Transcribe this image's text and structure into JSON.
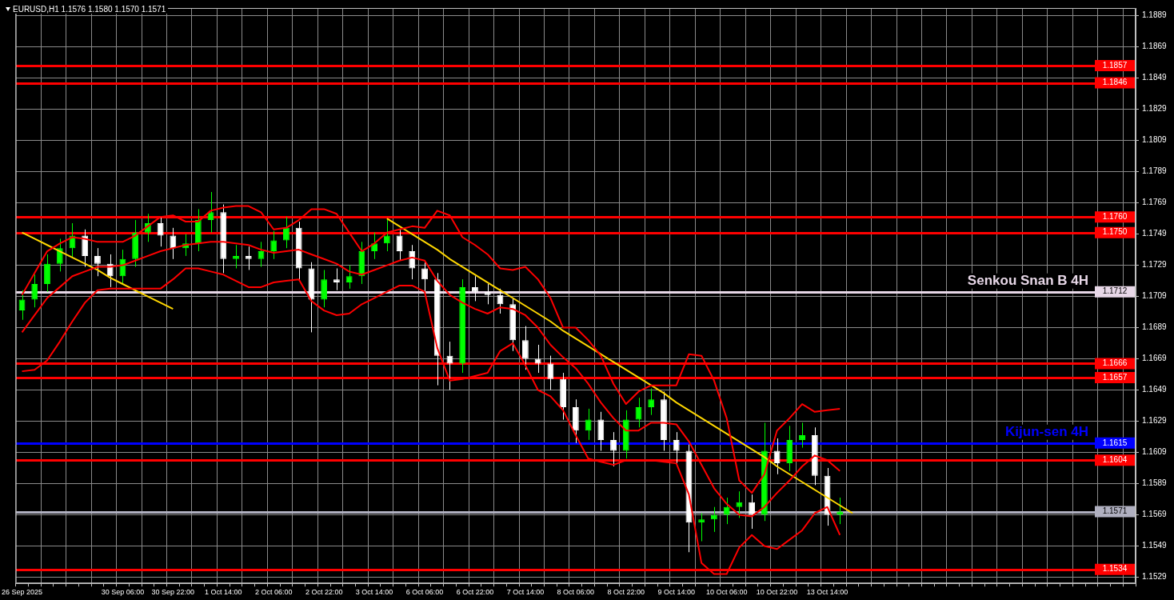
{
  "chart_data": {
    "type": "candlestick",
    "title": "EURUSD,H1  1.1576 1.1580 1.1570 1.1571",
    "colors": [
      "#00ff00",
      "#00ff00",
      "#00ff00",
      "#00ff00",
      "#00ff00",
      "#ffffff",
      "#ffffff",
      "#ffffff",
      "#00ff00",
      "#00ff00",
      "#00ff00",
      "#ffffff",
      "#ffffff",
      "#00ff00",
      "#00ff00",
      "#00ff00",
      "#ffffff",
      "#00ff00",
      "#ffffff",
      "#00ff00",
      "#00ff00",
      "#00ff00",
      "#ffffff",
      "#ffffff",
      "#00ff00",
      "#ffffff",
      "#00ff00",
      "#00ff00",
      "#00ff00",
      "#00ff00",
      "#ffffff",
      "#ffffff",
      "#ffffff",
      "#ffffff",
      "#ffffff",
      "#00ff00",
      "#ffffff",
      "#ffffff",
      "#ffffff",
      "#ffffff",
      "#ffffff",
      "#ffffff",
      "#ffffff",
      "#ffffff",
      "#ffffff",
      "#00ff00",
      "#ffffff",
      "#ffffff",
      "#00ff00",
      "#00ff00",
      "#00ff00",
      "#ffffff",
      "#ffffff",
      "#ffffff",
      "#00ff00",
      "#00ff00",
      "#00ff00",
      "#00ff00",
      "#ffffff",
      "#00ff00",
      "#ffffff",
      "#00ff00",
      "#00ff00",
      "#ffffff",
      "#ffffff",
      "#00ff00",
      null,
      null,
      null,
      null,
      null,
      null,
      null,
      null,
      null,
      null,
      null,
      null,
      null,
      null,
      null,
      null,
      null,
      null,
      null,
      null,
      null,
      null,
      null
    ],
    "categories": [
      "26 Sep 2025",
      null,
      null,
      null,
      null,
      null,
      null,
      null,
      "30 Sep 06:00",
      null,
      null,
      null,
      "30 Sep 22:00",
      null,
      null,
      null,
      "1 Oct 14:00",
      null,
      null,
      null,
      "2 Oct 06:00",
      null,
      null,
      null,
      "2 Oct 22:00",
      null,
      null,
      null,
      "3 Oct 14:00",
      null,
      null,
      null,
      "6 Oct 06:00",
      null,
      null,
      null,
      "6 Oct 22:00",
      null,
      null,
      null,
      "7 Oct 14:00",
      null,
      null,
      null,
      "8 Oct 06:00",
      null,
      null,
      null,
      "8 Oct 22:00",
      null,
      null,
      null,
      "9 Oct 14:00",
      null,
      null,
      null,
      "10 Oct 06:00",
      null,
      null,
      null,
      "10 Oct 22:00",
      null,
      null,
      null,
      "13 Oct 14:00",
      null,
      null,
      null,
      null,
      null,
      null,
      null,
      null,
      null,
      null,
      null,
      null,
      null,
      null,
      null,
      null,
      null,
      null,
      null,
      null,
      null,
      null,
      null,
      null
    ],
    "ohlc": [
      [
        1.17,
        1.1713,
        1.1694,
        1.1707
      ],
      [
        1.1707,
        1.1723,
        1.1702,
        1.1717
      ],
      [
        1.1717,
        1.1736,
        1.1712,
        1.173
      ],
      [
        1.173,
        1.1746,
        1.1725,
        1.174
      ],
      [
        1.174,
        1.1756,
        1.1734,
        1.1748
      ],
      [
        1.1748,
        1.1752,
        1.1728,
        1.1735
      ],
      [
        1.1735,
        1.174,
        1.1722,
        1.173
      ],
      [
        1.173,
        1.1736,
        1.1715,
        1.1722
      ],
      [
        1.1722,
        1.1739,
        1.1717,
        1.1733
      ],
      [
        1.1733,
        1.1758,
        1.1728,
        1.175
      ],
      [
        1.175,
        1.1762,
        1.1744,
        1.1756
      ],
      [
        1.1756,
        1.176,
        1.1741,
        1.1748
      ],
      [
        1.1748,
        1.1753,
        1.1733,
        1.174
      ],
      [
        1.174,
        1.1749,
        1.1735,
        1.1743
      ],
      [
        1.1743,
        1.1765,
        1.1738,
        1.1758
      ],
      [
        1.1758,
        1.1776,
        1.175,
        1.1763
      ],
      [
        1.1763,
        1.1768,
        1.1724,
        1.1733
      ],
      [
        1.1733,
        1.1742,
        1.1727,
        1.1735
      ],
      [
        1.1735,
        1.1741,
        1.1726,
        1.1733
      ],
      [
        1.1733,
        1.1744,
        1.1728,
        1.1738
      ],
      [
        1.1738,
        1.1751,
        1.1733,
        1.1745
      ],
      [
        1.1745,
        1.176,
        1.174,
        1.1753
      ],
      [
        1.1753,
        1.1757,
        1.1719,
        1.1727
      ],
      [
        1.1727,
        1.1731,
        1.1686,
        1.1707
      ],
      [
        1.1707,
        1.1726,
        1.1702,
        1.172
      ],
      [
        1.172,
        1.1727,
        1.1713,
        1.1718
      ],
      [
        1.1718,
        1.1729,
        1.1714,
        1.1722
      ],
      [
        1.1722,
        1.1744,
        1.1717,
        1.1738
      ],
      [
        1.1738,
        1.175,
        1.1733,
        1.1743
      ],
      [
        1.1743,
        1.1759,
        1.1738,
        1.1748
      ],
      [
        1.1748,
        1.1752,
        1.1732,
        1.1738
      ],
      [
        1.1738,
        1.1742,
        1.172,
        1.1727
      ],
      [
        1.1727,
        1.1731,
        1.1712,
        1.172
      ],
      [
        1.172,
        1.1724,
        1.1652,
        1.1671
      ],
      [
        1.1671,
        1.168,
        1.1649,
        1.1666
      ],
      [
        1.1666,
        1.172,
        1.166,
        1.1715
      ],
      [
        1.1715,
        1.1722,
        1.1706,
        1.1712
      ],
      [
        1.1712,
        1.1717,
        1.1704,
        1.171
      ],
      [
        1.171,
        1.1714,
        1.1698,
        1.1704
      ],
      [
        1.1704,
        1.1708,
        1.1674,
        1.1681
      ],
      [
        1.1681,
        1.169,
        1.1662,
        1.1669
      ],
      [
        1.1669,
        1.1678,
        1.166,
        1.1666
      ],
      [
        1.1666,
        1.1671,
        1.1649,
        1.1656
      ],
      [
        1.1656,
        1.166,
        1.163,
        1.1638
      ],
      [
        1.1638,
        1.1643,
        1.1615,
        1.1623
      ],
      [
        1.1623,
        1.1637,
        1.1617,
        1.163
      ],
      [
        1.163,
        1.1635,
        1.161,
        1.1617
      ],
      [
        1.1617,
        1.1622,
        1.16,
        1.161
      ],
      [
        1.161,
        1.1636,
        1.1605,
        1.163
      ],
      [
        1.163,
        1.1644,
        1.1625,
        1.1638
      ],
      [
        1.1638,
        1.165,
        1.1633,
        1.1643
      ],
      [
        1.1643,
        1.1648,
        1.161,
        1.1617
      ],
      [
        1.1617,
        1.1622,
        1.1602,
        1.161
      ],
      [
        1.161,
        1.1614,
        1.1545,
        1.1564
      ],
      [
        1.1564,
        1.157,
        1.1552,
        1.1566
      ],
      [
        1.1566,
        1.1574,
        1.1558,
        1.1569
      ],
      [
        1.1569,
        1.158,
        1.1563,
        1.1574
      ],
      [
        1.1574,
        1.1584,
        1.1567,
        1.1577
      ],
      [
        1.1577,
        1.1582,
        1.156,
        1.1569
      ],
      [
        1.1569,
        1.1628,
        1.1565,
        1.161
      ],
      [
        1.161,
        1.1618,
        1.1595,
        1.1602
      ],
      [
        1.1602,
        1.1626,
        1.1597,
        1.1617
      ],
      [
        1.1617,
        1.1628,
        1.1612,
        1.162
      ],
      [
        1.162,
        1.1625,
        1.1588,
        1.1594
      ],
      [
        1.1594,
        1.1599,
        1.1562,
        1.1569
      ],
      [
        1.1569,
        1.158,
        1.1563,
        1.1571
      ],
      null,
      null,
      null,
      null,
      null,
      null,
      null,
      null,
      null,
      null,
      null,
      null,
      null,
      null,
      null,
      null,
      null,
      null,
      null,
      null,
      null,
      null,
      null
    ],
    "series": [
      {
        "type": "line",
        "color": "#ff0000",
        "values": [
          1.171,
          1.1724,
          1.1738,
          1.1743,
          1.1747,
          1.1746,
          1.1744,
          1.1744,
          1.1744,
          1.1748,
          1.1754,
          1.176,
          1.1761,
          1.1757,
          1.1757,
          1.1764,
          1.1766,
          1.1767,
          1.1767,
          1.1763,
          1.1752,
          1.1753,
          1.1758,
          1.1765,
          1.1765,
          1.1762,
          1.175,
          1.1738,
          1.1743,
          1.175,
          1.1752,
          1.1754,
          1.1753,
          1.1764,
          1.1761,
          1.1747,
          1.1742,
          1.1736,
          1.1727,
          1.1726,
          1.1728,
          1.172,
          1.1708,
          1.1689,
          1.1689,
          1.1681,
          1.1671,
          1.1653,
          1.164,
          1.1648,
          1.1652,
          1.1652,
          1.1652,
          1.1672,
          1.1671,
          1.1655,
          1.1631,
          1.1591,
          1.1583,
          1.1595,
          1.1623,
          1.1631,
          1.164,
          1.1635,
          1.1636,
          1.1637,
          null,
          null,
          null,
          null,
          null,
          null,
          null,
          null,
          null,
          null,
          null,
          null,
          null,
          null,
          null,
          null,
          null,
          null,
          null,
          null,
          null,
          null,
          null
        ]
      },
      {
        "type": "line",
        "color": "#ff0000",
        "values": [
          1.1686,
          1.1697,
          1.1708,
          1.1715,
          1.1722,
          1.1725,
          1.1728,
          1.1728,
          1.1729,
          1.1732,
          1.1735,
          1.1738,
          1.174,
          1.1742,
          1.1743,
          1.1744,
          1.1744,
          1.1743,
          1.1742,
          1.1739,
          1.1737,
          1.1738,
          1.1739,
          1.1736,
          1.1733,
          1.173,
          1.1725,
          1.1723,
          1.1726,
          1.1729,
          1.1732,
          1.1734,
          1.1732,
          1.1719,
          1.171,
          1.1705,
          1.1701,
          1.1698,
          1.1702,
          1.1701,
          1.1697,
          1.1689,
          1.1678,
          1.167,
          1.1663,
          1.1653,
          1.1641,
          1.1631,
          1.1623,
          1.1623,
          1.1628,
          1.1628,
          1.1627,
          1.1616,
          1.1601,
          1.1586,
          1.1576,
          1.1569,
          1.1568,
          1.1574,
          1.1583,
          1.1591,
          1.16,
          1.1607,
          1.1604,
          1.1597,
          null,
          null,
          null,
          null,
          null,
          null,
          null,
          null,
          null,
          null,
          null,
          null,
          null,
          null,
          null,
          null,
          null,
          null,
          null,
          null,
          null,
          null,
          null
        ]
      },
      {
        "type": "line",
        "color": "#ff0000",
        "values": [
          1.1661,
          1.1662,
          1.1668,
          1.168,
          1.1693,
          1.1705,
          1.1713,
          1.1714,
          1.1714,
          1.1714,
          1.1714,
          1.1714,
          1.172,
          1.1727,
          1.1727,
          1.1725,
          1.1723,
          1.1719,
          1.1715,
          1.1715,
          1.1718,
          1.1719,
          1.172,
          1.1706,
          1.17,
          1.1697,
          1.1698,
          1.1704,
          1.1708,
          1.1712,
          1.1716,
          1.1716,
          1.1712,
          1.1676,
          1.1655,
          1.1656,
          1.1658,
          1.166,
          1.1674,
          1.1679,
          1.1665,
          1.1649,
          1.1645,
          1.1636,
          1.162,
          1.1605,
          1.1603,
          1.1601,
          1.1604,
          1.1604,
          1.1604,
          1.1603,
          1.1602,
          1.1582,
          1.1538,
          1.1531,
          1.1531,
          1.1548,
          1.1556,
          1.1549,
          1.1547,
          1.1553,
          1.1559,
          1.157,
          1.1574,
          1.1556,
          null,
          null,
          null,
          null,
          null,
          null,
          null,
          null,
          null,
          null,
          null,
          null,
          null,
          null,
          null,
          null,
          null,
          null,
          null,
          null,
          null,
          null,
          null
        ]
      },
      {
        "type": "line",
        "color": "#ffd700",
        "values": [
          1.175,
          1.1746,
          1.1742,
          1.1738,
          1.1734,
          1.173,
          1.1726,
          1.1721,
          1.1717,
          1.1713,
          1.1709,
          1.1705,
          1.1701,
          null,
          null,
          null,
          null,
          null,
          null,
          null,
          null,
          null,
          null,
          null,
          null,
          null,
          null,
          null,
          null,
          null,
          null,
          null,
          null,
          null,
          null,
          null,
          null,
          null,
          null,
          null,
          null,
          null,
          null,
          null,
          null,
          null,
          null,
          null,
          null,
          null,
          null,
          null,
          null,
          null,
          null,
          null,
          null,
          null,
          null,
          null,
          null,
          null,
          null,
          null,
          null,
          null,
          null,
          null,
          null,
          null,
          null,
          null,
          null,
          null,
          null,
          null,
          null,
          null,
          null,
          null,
          null,
          null,
          null,
          null,
          null,
          null,
          null,
          null,
          null
        ]
      },
      {
        "type": "line",
        "color": "#ffd700",
        "values": [
          null,
          null,
          null,
          null,
          null,
          null,
          null,
          null,
          null,
          null,
          null,
          null,
          null,
          null,
          null,
          null,
          null,
          null,
          null,
          null,
          null,
          null,
          null,
          null,
          null,
          null,
          null,
          null,
          null,
          1.1759,
          1.1754,
          1.1749,
          1.1744,
          1.1739,
          1.1733,
          1.1728,
          1.1723,
          1.1718,
          1.1713,
          1.1708,
          1.1703,
          1.1698,
          1.1693,
          1.1687,
          1.1682,
          1.1677,
          1.1672,
          1.1667,
          1.1662,
          1.1657,
          1.1652,
          1.1647,
          1.1641,
          1.1636,
          1.1631,
          1.1626,
          1.1621,
          1.1616,
          1.1611,
          1.1606,
          1.16,
          1.1595,
          1.159,
          1.1585,
          1.158,
          1.1575,
          1.157,
          null,
          null,
          null,
          null,
          null,
          null,
          null,
          null,
          null,
          null,
          null,
          null,
          null,
          null,
          null,
          null,
          null,
          null,
          null,
          null,
          null,
          null
        ]
      }
    ],
    "ylim": [
      1.1525,
      1.1894
    ],
    "yticks": [
      1.1529,
      1.1549,
      1.1569,
      1.1589,
      1.1609,
      1.1629,
      1.1649,
      1.1669,
      1.1689,
      1.1709,
      1.1729,
      1.1749,
      1.1769,
      1.1789,
      1.1809,
      1.1829,
      1.1849,
      1.1869,
      1.1889
    ],
    "ref_lines": [
      {
        "axis": "y",
        "value": 1.1857,
        "label": "1.1857",
        "color": "#ff0000"
      },
      {
        "axis": "y",
        "value": 1.1846,
        "label": "1.1846",
        "color": "#ff0000"
      },
      {
        "axis": "y",
        "value": 1.176,
        "label": "1.1760",
        "color": "#ff0000"
      },
      {
        "axis": "y",
        "value": 1.175,
        "label": "1.1750",
        "color": "#ff0000"
      },
      {
        "axis": "y",
        "value": 1.1712,
        "label": "1.1712",
        "color": "#e8d8e8"
      },
      {
        "axis": "y",
        "value": 1.1666,
        "label": "1.1666",
        "color": "#ff0000"
      },
      {
        "axis": "y",
        "value": 1.1657,
        "label": "1.1657",
        "color": "#ff0000"
      },
      {
        "axis": "y",
        "value": 1.1615,
        "label": "1.1615",
        "color": "#0000ff"
      },
      {
        "axis": "y",
        "value": 1.1604,
        "label": "1.1604",
        "color": "#ff0000"
      },
      {
        "axis": "y",
        "value": 1.1571,
        "label": "1.1571",
        "color": "#b0b0c0"
      },
      {
        "axis": "y",
        "value": 1.1534,
        "label": "1.1534",
        "color": "#ff0000"
      }
    ],
    "annotations": [
      {
        "text": "Senkou Snan B 4H",
        "y": 1.1712
      },
      {
        "text": "Kijun-sen 4H",
        "y": 1.1615
      }
    ],
    "grid": true,
    "legend": false,
    "marker": "none"
  }
}
